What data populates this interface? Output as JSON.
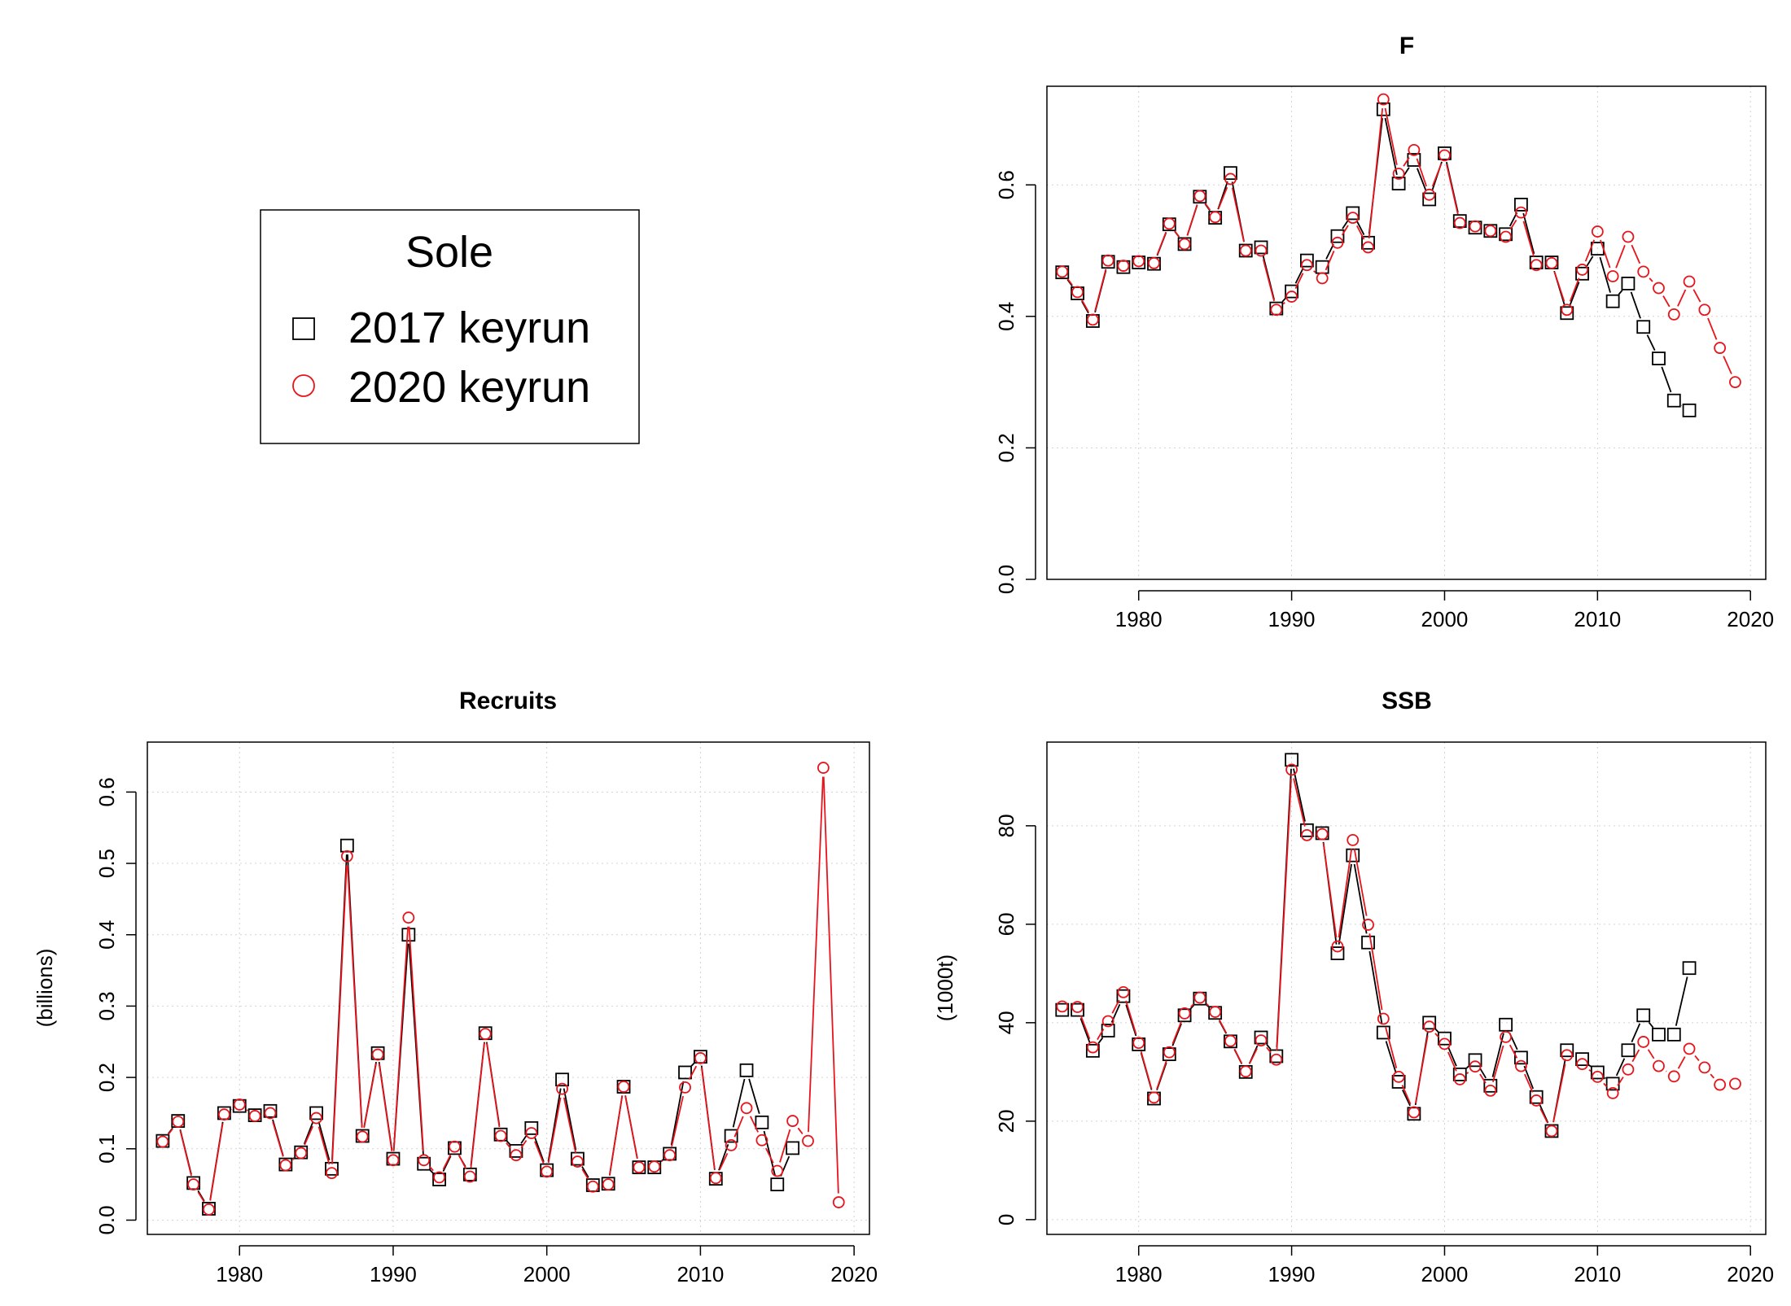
{
  "legend": {
    "title": "Sole",
    "entries": [
      {
        "label": "2017 keyrun",
        "color": "#000000",
        "marker": "square"
      },
      {
        "label": "2020 keyrun",
        "color": "#e8141b",
        "marker": "circle"
      }
    ]
  },
  "chart_data": [
    {
      "id": "F",
      "type": "line",
      "title": "F",
      "xlabel": "",
      "ylabel": "",
      "xlim": [
        1974,
        2021
      ],
      "ylim": [
        0,
        0.75
      ],
      "xticks": [
        1980,
        1990,
        2000,
        2010,
        2020
      ],
      "yticks": [
        0.0,
        0.2,
        0.4,
        0.6
      ],
      "ytick_labels": [
        "0.0",
        "0.2",
        "0.4",
        "0.6"
      ],
      "grid": true,
      "series": [
        {
          "name": "2017 keyrun",
          "color": "#000000",
          "marker": "square",
          "x": [
            1975,
            1976,
            1977,
            1978,
            1979,
            1980,
            1981,
            1982,
            1983,
            1984,
            1985,
            1986,
            1987,
            1988,
            1989,
            1990,
            1991,
            1992,
            1993,
            1994,
            1995,
            1996,
            1997,
            1998,
            1999,
            2000,
            2001,
            2002,
            2003,
            2004,
            2005,
            2006,
            2007,
            2008,
            2009,
            2010,
            2011,
            2012,
            2013,
            2014,
            2015,
            2016
          ],
          "y": [
            0.467,
            0.435,
            0.393,
            0.483,
            0.475,
            0.482,
            0.48,
            0.54,
            0.51,
            0.582,
            0.55,
            0.618,
            0.5,
            0.505,
            0.412,
            0.438,
            0.485,
            0.475,
            0.522,
            0.557,
            0.512,
            0.715,
            0.602,
            0.638,
            0.578,
            0.648,
            0.545,
            0.535,
            0.53,
            0.525,
            0.57,
            0.482,
            0.482,
            0.405,
            0.465,
            0.503,
            0.423,
            0.45,
            0.384,
            0.336,
            0.272,
            0.257
          ]
        },
        {
          "name": "2020 keyrun",
          "color": "#e8141b",
          "marker": "circle",
          "x": [
            1975,
            1976,
            1977,
            1978,
            1979,
            1980,
            1981,
            1982,
            1983,
            1984,
            1985,
            1986,
            1987,
            1988,
            1989,
            1990,
            1991,
            1992,
            1993,
            1994,
            1995,
            1996,
            1997,
            1998,
            1999,
            2000,
            2001,
            2002,
            2003,
            2004,
            2005,
            2006,
            2007,
            2008,
            2009,
            2010,
            2011,
            2012,
            2013,
            2014,
            2015,
            2016,
            2017,
            2018,
            2019
          ],
          "y": [
            0.468,
            0.437,
            0.395,
            0.485,
            0.477,
            0.484,
            0.481,
            0.541,
            0.51,
            0.583,
            0.551,
            0.609,
            0.5,
            0.5,
            0.41,
            0.43,
            0.478,
            0.458,
            0.512,
            0.55,
            0.505,
            0.73,
            0.617,
            0.653,
            0.585,
            0.645,
            0.542,
            0.537,
            0.53,
            0.521,
            0.558,
            0.478,
            0.481,
            0.41,
            0.471,
            0.529,
            0.461,
            0.521,
            0.468,
            0.443,
            0.403,
            0.453,
            0.41,
            0.352,
            0.3
          ]
        }
      ]
    },
    {
      "id": "Recruits",
      "type": "line",
      "title": "Recruits",
      "xlabel": "",
      "ylabel": "(billions)",
      "xlim": [
        1974,
        2021
      ],
      "ylim": [
        -0.02,
        0.67
      ],
      "xticks": [
        1980,
        1990,
        2000,
        2010,
        2020
      ],
      "yticks": [
        0.0,
        0.1,
        0.2,
        0.3,
        0.4,
        0.5,
        0.6
      ],
      "ytick_labels": [
        "0.0",
        "0.1",
        "0.2",
        "0.3",
        "0.4",
        "0.5",
        "0.6"
      ],
      "grid": true,
      "series": [
        {
          "name": "2017 keyrun",
          "color": "#000000",
          "marker": "square",
          "x": [
            1975,
            1976,
            1977,
            1978,
            1979,
            1980,
            1981,
            1982,
            1983,
            1984,
            1985,
            1986,
            1987,
            1988,
            1989,
            1990,
            1991,
            1992,
            1993,
            1994,
            1995,
            1996,
            1997,
            1998,
            1999,
            2000,
            2001,
            2002,
            2003,
            2004,
            2005,
            2006,
            2007,
            2008,
            2009,
            2010,
            2011,
            2012,
            2013,
            2014,
            2015,
            2016
          ],
          "y": [
            0.111,
            0.139,
            0.052,
            0.016,
            0.15,
            0.16,
            0.147,
            0.153,
            0.078,
            0.095,
            0.15,
            0.072,
            0.525,
            0.118,
            0.234,
            0.086,
            0.4,
            0.079,
            0.057,
            0.101,
            0.064,
            0.262,
            0.12,
            0.097,
            0.129,
            0.07,
            0.197,
            0.086,
            0.049,
            0.051,
            0.187,
            0.074,
            0.074,
            0.093,
            0.207,
            0.229,
            0.058,
            0.118,
            0.21,
            0.137,
            0.05,
            0.101
          ]
        },
        {
          "name": "2020 keyrun",
          "color": "#e8141b",
          "marker": "circle",
          "x": [
            1975,
            1976,
            1977,
            1978,
            1979,
            1980,
            1981,
            1982,
            1983,
            1984,
            1985,
            1986,
            1987,
            1988,
            1989,
            1990,
            1991,
            1992,
            1993,
            1994,
            1995,
            1996,
            1997,
            1998,
            1999,
            2000,
            2001,
            2002,
            2003,
            2004,
            2005,
            2006,
            2007,
            2008,
            2009,
            2010,
            2011,
            2012,
            2013,
            2014,
            2015,
            2016,
            2017,
            2018,
            2019
          ],
          "y": [
            0.11,
            0.138,
            0.05,
            0.015,
            0.148,
            0.162,
            0.146,
            0.15,
            0.077,
            0.094,
            0.143,
            0.066,
            0.51,
            0.117,
            0.232,
            0.084,
            0.424,
            0.084,
            0.06,
            0.103,
            0.061,
            0.261,
            0.118,
            0.091,
            0.122,
            0.068,
            0.184,
            0.082,
            0.047,
            0.05,
            0.187,
            0.074,
            0.075,
            0.091,
            0.186,
            0.227,
            0.059,
            0.105,
            0.157,
            0.112,
            0.069,
            0.139,
            0.111,
            0.634,
            0.025
          ]
        }
      ]
    },
    {
      "id": "SSB",
      "type": "line",
      "title": "SSB",
      "xlabel": "",
      "ylabel": "(1000t)",
      "xlim": [
        1974,
        2021
      ],
      "ylim": [
        -3,
        97
      ],
      "xticks": [
        1980,
        1990,
        2000,
        2010,
        2020
      ],
      "yticks": [
        0,
        20,
        40,
        60,
        80
      ],
      "ytick_labels": [
        "0",
        "20",
        "40",
        "60",
        "80"
      ],
      "grid": true,
      "series": [
        {
          "name": "2017 keyrun",
          "color": "#000000",
          "marker": "square",
          "x": [
            1975,
            1976,
            1977,
            1978,
            1979,
            1980,
            1981,
            1982,
            1983,
            1984,
            1985,
            1986,
            1987,
            1988,
            1989,
            1990,
            1991,
            1992,
            1993,
            1994,
            1995,
            1996,
            1997,
            1998,
            1999,
            2000,
            2001,
            2002,
            2003,
            2004,
            2005,
            2006,
            2007,
            2008,
            2009,
            2010,
            2011,
            2012,
            2013,
            2014,
            2015,
            2016
          ],
          "y": [
            42.6,
            42.6,
            34.3,
            38.4,
            45.4,
            35.6,
            24.6,
            33.6,
            41.5,
            44.9,
            42.0,
            36.2,
            30.0,
            37.0,
            33.2,
            93.4,
            79.1,
            78.5,
            54.1,
            74.0,
            56.3,
            38.0,
            28.0,
            21.5,
            40.0,
            36.8,
            29.5,
            32.4,
            27.2,
            39.6,
            32.9,
            24.9,
            18.0,
            34.4,
            32.6,
            29.9,
            27.6,
            34.4,
            41.5,
            37.6,
            37.6,
            51.1
          ]
        },
        {
          "name": "2020 keyrun",
          "color": "#e8141b",
          "marker": "circle",
          "x": [
            1975,
            1976,
            1977,
            1978,
            1979,
            1980,
            1981,
            1982,
            1983,
            1984,
            1985,
            1986,
            1987,
            1988,
            1989,
            1990,
            1991,
            1992,
            1993,
            1994,
            1995,
            1996,
            1997,
            1998,
            1999,
            2000,
            2001,
            2002,
            2003,
            2004,
            2005,
            2006,
            2007,
            2008,
            2009,
            2010,
            2011,
            2012,
            2013,
            2014,
            2015,
            2016,
            2017,
            2018,
            2019
          ],
          "y": [
            43.3,
            43.2,
            35.0,
            40.3,
            46.2,
            35.9,
            24.8,
            34.0,
            41.9,
            45.1,
            42.2,
            36.3,
            30.1,
            36.4,
            32.5,
            91.4,
            78.1,
            78.3,
            55.5,
            77.1,
            59.9,
            40.8,
            29.0,
            21.8,
            39.2,
            35.7,
            28.5,
            31.1,
            26.2,
            37.1,
            31.2,
            24.2,
            18.0,
            33.4,
            31.6,
            29.0,
            25.7,
            30.5,
            36.1,
            31.2,
            29.1,
            34.7,
            30.9,
            27.4,
            27.6
          ]
        }
      ]
    }
  ]
}
